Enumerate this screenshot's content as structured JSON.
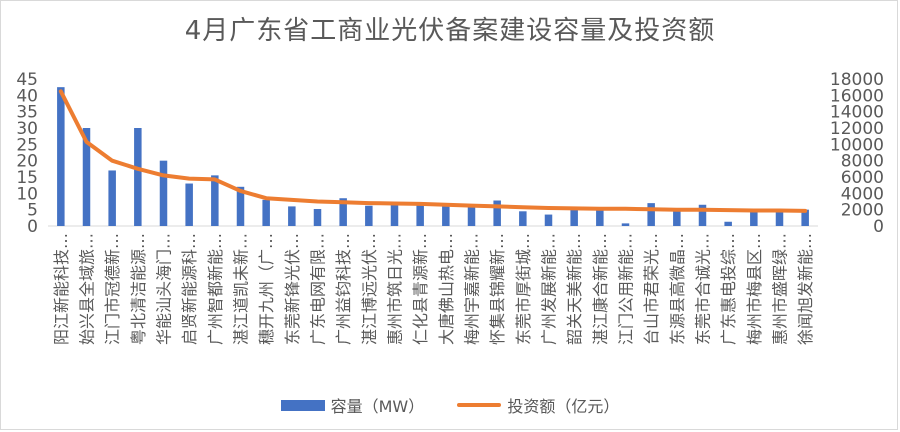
{
  "chart_data": {
    "type": "bar",
    "title": "4月广东省工商业光伏备案建设容量及投资额",
    "categories": [
      "阳江新能科技…",
      "始兴县全域旅…",
      "江门市冠德新…",
      "粤北清洁能源…",
      "华能汕头海门…",
      "启贤新能源科…",
      "广州智都新能…",
      "湛江道凯未新…",
      "穗开九州（广…",
      "东莞新锋光伏…",
      "广东电网有限…",
      "广州益钧科技…",
      "湛江博远光伏…",
      "惠州市筑日光…",
      "仁化县青源新…",
      "大唐佛山热电…",
      "梅州宇嘉新能…",
      "怀集县锦耀新…",
      "东莞市厚街城…",
      "广州发展新能…",
      "韶关天美新能…",
      "湛江康合新能…",
      "江门公用新能…",
      "台山市君荣光…",
      "东源县高微晶…",
      "东莞市合诚光…",
      "广东惠电投综…",
      "梅州市梅县区…",
      "惠州市盛晖绿…",
      "徐闻旭发新能…"
    ],
    "series": [
      {
        "name": "容量（MW）",
        "type": "bar",
        "axis": "left",
        "color": "#4472c4",
        "values": [
          42.5,
          30,
          17,
          30,
          20,
          13,
          15.5,
          12,
          8,
          6,
          5.2,
          8.5,
          6.2,
          6.5,
          6.8,
          6.5,
          6.5,
          7.8,
          4.5,
          3.5,
          5,
          5,
          0.8,
          7,
          5.5,
          6.5,
          1.3,
          4.5,
          4.5,
          5
        ]
      },
      {
        "name": "投资额（亿元）",
        "type": "line",
        "axis": "right",
        "color": "#ed7d31",
        "values": [
          16500,
          10300,
          8000,
          7000,
          6200,
          5800,
          5700,
          4300,
          3400,
          3200,
          3000,
          2900,
          2800,
          2750,
          2700,
          2600,
          2500,
          2400,
          2300,
          2200,
          2150,
          2100,
          2100,
          2050,
          2000,
          2000,
          1950,
          1900,
          1900,
          1850
        ]
      }
    ],
    "y_left": {
      "min": 0,
      "max": 45,
      "step": 5,
      "ticks": [
        "0",
        "5",
        "10",
        "15",
        "20",
        "25",
        "30",
        "35",
        "40",
        "45"
      ]
    },
    "y_right": {
      "min": 0,
      "max": 18000,
      "step": 2000,
      "ticks": [
        "0",
        "2000",
        "4000",
        "6000",
        "8000",
        "10000",
        "12000",
        "14000",
        "16000",
        "18000"
      ]
    },
    "grid": false,
    "legend_position": "bottom"
  }
}
